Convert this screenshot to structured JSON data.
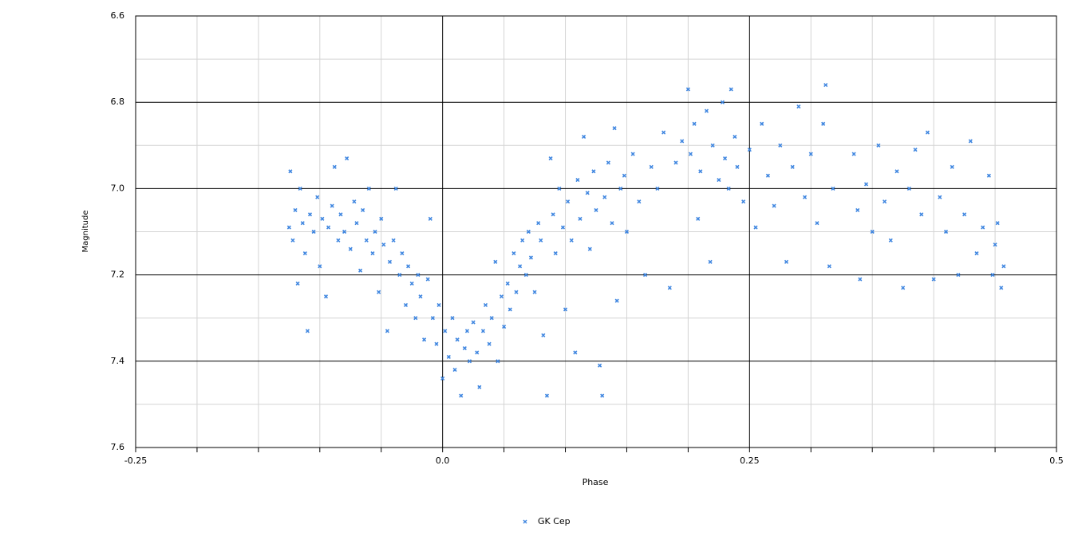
{
  "chart_data": {
    "type": "scatter",
    "x_label": "Phase",
    "y_label": "Magnitude",
    "xlim": [
      -0.25,
      0.5
    ],
    "xticks": [
      -0.25,
      {
        "value": 0,
        "label": "0.0"
      },
      0.25,
      0.5
    ],
    "xminorticks": [
      -0.2,
      -0.15,
      -0.1,
      -0.05,
      0.05,
      0.1,
      0.15,
      0.2,
      0.3,
      0.35,
      0.4,
      0.45
    ],
    "ylim": [
      6.6,
      7.6
    ],
    "y_inverted": true,
    "yticks": [
      6.6,
      6.8,
      {
        "value": 7,
        "label": "7.0"
      },
      7.2,
      7.4,
      7.6
    ],
    "yminorticks": [
      6.7,
      6.9,
      7.1,
      7.3,
      7.5
    ],
    "grid": true,
    "legend": "bottom",
    "series": [
      {
        "name": "GK Cep",
        "color": "#3f86e0",
        "x": [
          -0.125,
          -0.124,
          -0.122,
          -0.12,
          -0.118,
          -0.116,
          -0.114,
          -0.112,
          -0.11,
          -0.108,
          -0.105,
          -0.102,
          -0.1,
          -0.098,
          -0.095,
          -0.093,
          -0.09,
          -0.088,
          -0.085,
          -0.083,
          -0.08,
          -0.078,
          -0.075,
          -0.072,
          -0.07,
          -0.067,
          -0.065,
          -0.062,
          -0.06,
          -0.057,
          -0.055,
          -0.052,
          -0.05,
          -0.048,
          -0.045,
          -0.043,
          -0.04,
          -0.038,
          -0.035,
          -0.033,
          -0.03,
          -0.028,
          -0.025,
          -0.022,
          -0.02,
          -0.018,
          -0.015,
          -0.012,
          -0.01,
          -0.008,
          -0.005,
          -0.003,
          0.0,
          0.002,
          0.005,
          0.008,
          0.01,
          0.012,
          0.015,
          0.018,
          0.02,
          0.022,
          0.025,
          0.028,
          0.03,
          0.033,
          0.035,
          0.038,
          0.04,
          0.043,
          0.045,
          0.048,
          0.05,
          0.053,
          0.055,
          0.058,
          0.06,
          0.063,
          0.065,
          0.068,
          0.07,
          0.072,
          0.075,
          0.078,
          0.08,
          0.082,
          0.085,
          0.088,
          0.09,
          0.092,
          0.095,
          0.098,
          0.1,
          0.102,
          0.105,
          0.108,
          0.11,
          0.112,
          0.115,
          0.118,
          0.12,
          0.123,
          0.125,
          0.128,
          0.13,
          0.132,
          0.135,
          0.138,
          0.14,
          0.142,
          0.145,
          0.148,
          0.15,
          0.155,
          0.16,
          0.165,
          0.17,
          0.175,
          0.18,
          0.185,
          0.19,
          0.195,
          0.2,
          0.202,
          0.205,
          0.208,
          0.21,
          0.215,
          0.218,
          0.22,
          0.225,
          0.228,
          0.23,
          0.233,
          0.235,
          0.238,
          0.24,
          0.245,
          0.25,
          0.255,
          0.26,
          0.265,
          0.27,
          0.275,
          0.28,
          0.285,
          0.29,
          0.295,
          0.3,
          0.305,
          0.31,
          0.312,
          0.315,
          0.318,
          0.335,
          0.338,
          0.34,
          0.345,
          0.35,
          0.355,
          0.36,
          0.365,
          0.37,
          0.375,
          0.38,
          0.385,
          0.39,
          0.395,
          0.4,
          0.405,
          0.41,
          0.415,
          0.42,
          0.425,
          0.43,
          0.435,
          0.44,
          0.445,
          0.448,
          0.45,
          0.452,
          0.455,
          0.457
        ],
        "values": [
          7.09,
          6.96,
          7.12,
          7.05,
          7.22,
          7.0,
          7.08,
          7.15,
          7.33,
          7.06,
          7.1,
          7.02,
          7.18,
          7.07,
          7.25,
          7.09,
          7.04,
          6.95,
          7.12,
          7.06,
          7.1,
          6.93,
          7.14,
          7.03,
          7.08,
          7.19,
          7.05,
          7.12,
          7.0,
          7.15,
          7.1,
          7.24,
          7.07,
          7.13,
          7.33,
          7.17,
          7.12,
          7.0,
          7.2,
          7.15,
          7.27,
          7.18,
          7.22,
          7.3,
          7.2,
          7.25,
          7.35,
          7.21,
          7.07,
          7.3,
          7.36,
          7.27,
          7.44,
          7.33,
          7.39,
          7.3,
          7.42,
          7.35,
          7.48,
          7.37,
          7.33,
          7.4,
          7.31,
          7.38,
          7.46,
          7.33,
          7.27,
          7.36,
          7.3,
          7.17,
          7.4,
          7.25,
          7.32,
          7.22,
          7.28,
          7.15,
          7.24,
          7.18,
          7.12,
          7.2,
          7.1,
          7.16,
          7.24,
          7.08,
          7.12,
          7.34,
          7.48,
          6.93,
          7.06,
          7.15,
          7.0,
          7.09,
          7.28,
          7.03,
          7.12,
          7.38,
          6.98,
          7.07,
          6.88,
          7.01,
          7.14,
          6.96,
          7.05,
          7.41,
          7.48,
          7.02,
          6.94,
          7.08,
          6.86,
          7.26,
          7.0,
          6.97,
          7.1,
          6.92,
          7.03,
          7.2,
          6.95,
          7.0,
          6.87,
          7.23,
          6.94,
          6.89,
          6.77,
          6.92,
          6.85,
          7.07,
          6.96,
          6.82,
          7.17,
          6.9,
          6.98,
          6.8,
          6.93,
          7.0,
          6.77,
          6.88,
          6.95,
          7.03,
          6.91,
          7.09,
          6.85,
          6.97,
          7.04,
          6.9,
          7.17,
          6.95,
          6.81,
          7.02,
          6.92,
          7.08,
          6.85,
          6.76,
          7.18,
          7.0,
          6.92,
          7.05,
          7.21,
          6.99,
          7.1,
          6.9,
          7.03,
          7.12,
          6.96,
          7.23,
          7.0,
          6.91,
          7.06,
          6.87,
          7.21,
          7.02,
          7.1,
          6.95,
          7.2,
          7.06,
          6.89,
          7.15,
          7.09,
          6.97,
          7.2,
          7.13,
          7.08,
          7.23,
          7.18
        ]
      }
    ]
  }
}
